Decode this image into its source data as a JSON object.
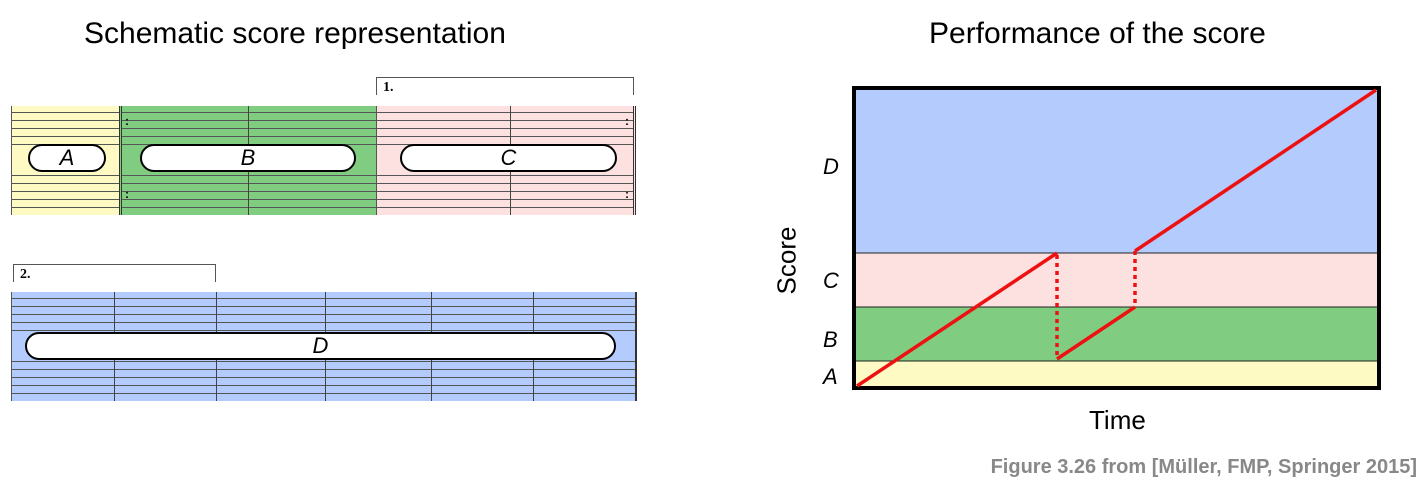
{
  "left_title": "Schematic score representation",
  "right_title": "Performance of the score",
  "sections": [
    {
      "label": "A",
      "color": "#fdfbc3"
    },
    {
      "label": "B",
      "color": "#80cc80"
    },
    {
      "label": "C",
      "color": "#fde0e0"
    },
    {
      "label": "D",
      "color": "#b3cbfd"
    }
  ],
  "volta1": "1.",
  "volta2": "2.",
  "y_axis_label": "Score",
  "x_axis_label": "Time",
  "performance_order": [
    "A",
    "B",
    "C",
    "B",
    "C",
    "D"
  ],
  "caption": "Figure 3.26 from [Müller, FMP, Springer 2015]"
}
